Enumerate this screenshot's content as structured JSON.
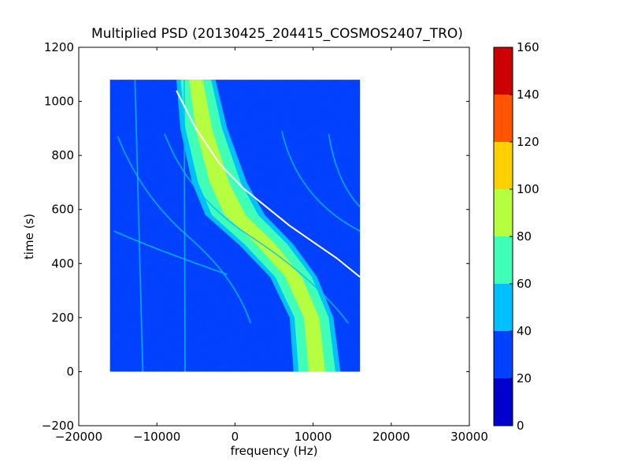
{
  "chart_data": {
    "type": "heatmap",
    "title": "Multiplied PSD (20130425_204415_COSMOS2407_TRO)",
    "xlabel": "frequency (Hz)",
    "ylabel": "time (s)",
    "xlim": [
      -20000,
      30000
    ],
    "ylim": [
      -200,
      1200
    ],
    "x_ticks": [
      -20000,
      -10000,
      0,
      10000,
      20000,
      30000
    ],
    "y_ticks": [
      -200,
      0,
      200,
      400,
      600,
      800,
      1000,
      1200
    ],
    "data_extent": {
      "x": [
        -16000,
        16000
      ],
      "y": [
        0,
        1080
      ]
    },
    "colorbar": {
      "range": [
        0,
        160
      ],
      "ticks": [
        0,
        20,
        40,
        60,
        80,
        100,
        120,
        140,
        160
      ],
      "bins": [
        {
          "from": 0,
          "to": 20,
          "color": "#0000cd"
        },
        {
          "from": 20,
          "to": 40,
          "color": "#0040ff"
        },
        {
          "from": 40,
          "to": 60,
          "color": "#00c0ff"
        },
        {
          "from": 60,
          "to": 80,
          "color": "#40ffb6"
        },
        {
          "from": 80,
          "to": 100,
          "color": "#b6ff40"
        },
        {
          "from": 100,
          "to": 120,
          "color": "#ffd000"
        },
        {
          "from": 120,
          "to": 140,
          "color": "#ff5500"
        },
        {
          "from": 140,
          "to": 160,
          "color": "#cd0000"
        }
      ]
    },
    "background_value": 30,
    "main_band": {
      "description_points": [
        {
          "time": 1080,
          "center": -5000,
          "half_width": 2500
        },
        {
          "time": 900,
          "center": -4000,
          "half_width": 3000
        },
        {
          "time": 700,
          "center": -2000,
          "half_width": 3500
        },
        {
          "time": 580,
          "center": 0,
          "half_width": 3800
        },
        {
          "time": 470,
          "center": 4000,
          "half_width": 3500
        },
        {
          "time": 350,
          "center": 7500,
          "half_width": 3000
        },
        {
          "time": 200,
          "center": 9800,
          "half_width": 2800
        },
        {
          "time": 0,
          "center": 10500,
          "half_width": 3000
        }
      ],
      "peak_value": 90
    },
    "white_curve": [
      [
        -7500,
        1040
      ],
      [
        -5000,
        900
      ],
      [
        -2000,
        770
      ],
      [
        1000,
        680
      ],
      [
        4000,
        610
      ],
      [
        7000,
        540
      ],
      [
        10000,
        480
      ],
      [
        13000,
        420
      ],
      [
        16000,
        350
      ]
    ]
  }
}
